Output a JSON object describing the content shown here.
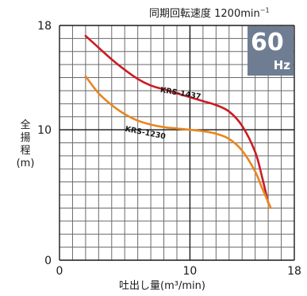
{
  "subtitle": "同期回転速度 1200min",
  "subtitle_sup": "−1",
  "frequency": {
    "value": "60",
    "unit": "Hz"
  },
  "axis": {
    "y_label_chars": [
      "全",
      "揚",
      "程"
    ],
    "y_unit": "(m)",
    "x_label": "吐出し量",
    "x_unit": "(m³/min)"
  },
  "chart_data": {
    "type": "line",
    "xlim": [
      0,
      18
    ],
    "ylim": [
      0,
      18
    ],
    "x_ticks": [
      0,
      10,
      18
    ],
    "y_ticks": [
      0,
      10,
      18
    ],
    "grid": true,
    "series": [
      {
        "name": "KRS-1437",
        "color": "#cc1b25",
        "x": [
          2,
          3,
          4,
          5,
          6,
          7,
          8,
          9,
          10,
          11,
          12,
          13,
          14,
          15,
          15.5,
          16
        ],
        "y": [
          17.2,
          16.3,
          15.4,
          14.6,
          13.9,
          13.4,
          13.1,
          12.8,
          12.5,
          12.2,
          11.9,
          11.4,
          10.3,
          8.3,
          6.5,
          4.4
        ]
      },
      {
        "name": "KRS-1230",
        "color": "#e8861f",
        "x": [
          2,
          3,
          4,
          5,
          6,
          7,
          8,
          9,
          10,
          11,
          12,
          13,
          14,
          15,
          15.5,
          16.2
        ],
        "y": [
          14.1,
          12.8,
          11.9,
          11.2,
          10.7,
          10.4,
          10.2,
          10.1,
          10.0,
          9.9,
          9.7,
          9.3,
          8.4,
          6.8,
          5.6,
          4.0
        ]
      }
    ]
  }
}
